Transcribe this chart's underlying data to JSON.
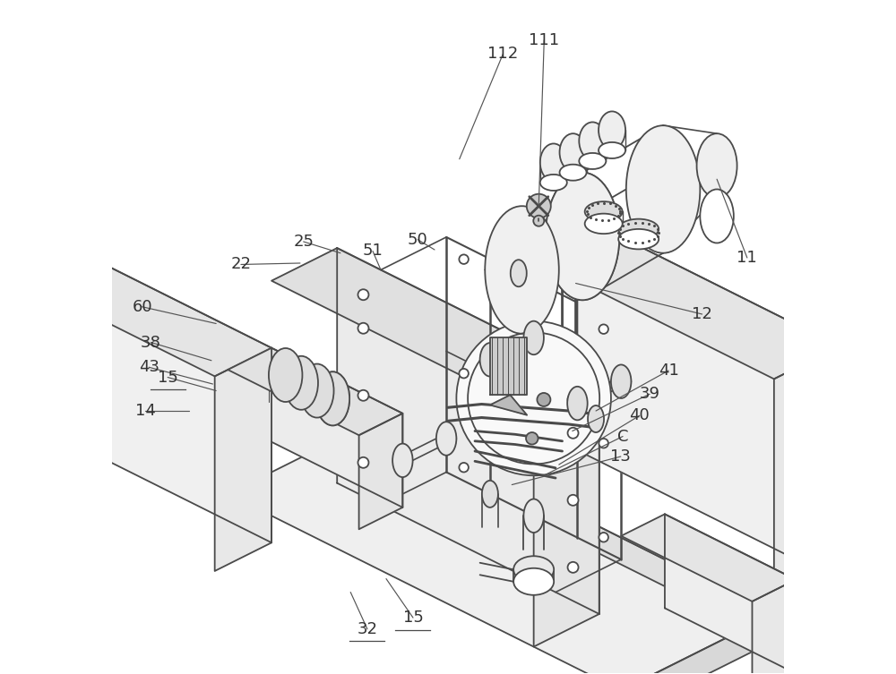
{
  "bg_color": "#ffffff",
  "line_color": "#4a4a4a",
  "line_width": 1.3,
  "label_color": "#333333",
  "label_fontsize": 13,
  "fig_width": 10.0,
  "fig_height": 7.53
}
